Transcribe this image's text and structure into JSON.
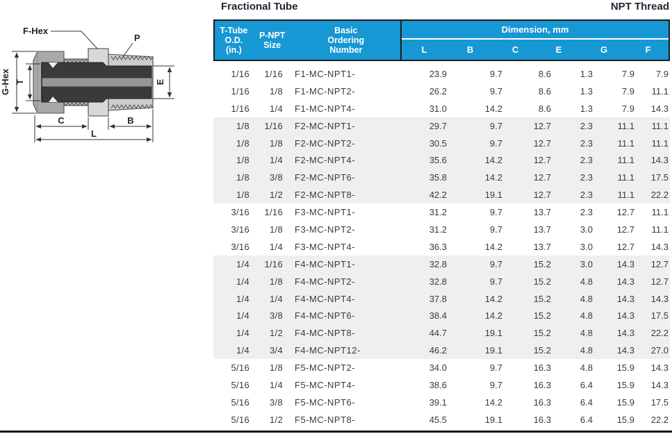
{
  "header": {
    "title_left": "Fractional Tube",
    "title_right": "NPT Thread"
  },
  "diagram": {
    "labels": {
      "f_hex": "F-Hex",
      "p": "P",
      "g_hex": "G-Hex",
      "t": "T",
      "e": "E",
      "c": "C",
      "b": "B",
      "l": "L"
    }
  },
  "table": {
    "column_headers": {
      "tube_od_lines": [
        "T-Tube",
        "O.D.",
        "(in.)"
      ],
      "npt_size_lines": [
        "P-NPT",
        "Size"
      ],
      "ordering_lines": [
        "Basic",
        "Ordering",
        "Number"
      ]
    },
    "dimension_header": "Dimension, mm",
    "dimension_columns": [
      "L",
      "B",
      "C",
      "E",
      "G",
      "F"
    ],
    "rows": [
      {
        "od": "1/16",
        "npt": "1/16",
        "order": "F1-MC-NPT1-",
        "dims": [
          "23.9",
          "9.7",
          "8.6",
          "1.3",
          "7.9",
          "7.9"
        ],
        "shaded": false
      },
      {
        "od": "1/16",
        "npt": "1/8",
        "order": "F1-MC-NPT2-",
        "dims": [
          "26.2",
          "9.7",
          "8.6",
          "1.3",
          "7.9",
          "11.1"
        ],
        "shaded": false
      },
      {
        "od": "1/16",
        "npt": "1/4",
        "order": "F1-MC-NPT4-",
        "dims": [
          "31.0",
          "14.2",
          "8.6",
          "1.3",
          "7.9",
          "14.3"
        ],
        "shaded": false
      },
      {
        "od": "1/8",
        "npt": "1/16",
        "order": "F2-MC-NPT1-",
        "dims": [
          "29.7",
          "9.7",
          "12.7",
          "2.3",
          "11.1",
          "11.1"
        ],
        "shaded": true
      },
      {
        "od": "1/8",
        "npt": "1/8",
        "order": "F2-MC-NPT2-",
        "dims": [
          "30.5",
          "9.7",
          "12.7",
          "2.3",
          "11.1",
          "11.1"
        ],
        "shaded": true
      },
      {
        "od": "1/8",
        "npt": "1/4",
        "order": "F2-MC-NPT4-",
        "dims": [
          "35.6",
          "14.2",
          "12.7",
          "2.3",
          "11.1",
          "14.3"
        ],
        "shaded": true
      },
      {
        "od": "1/8",
        "npt": "3/8",
        "order": "F2-MC-NPT6-",
        "dims": [
          "35.8",
          "14.2",
          "12.7",
          "2.3",
          "11.1",
          "17.5"
        ],
        "shaded": true
      },
      {
        "od": "1/8",
        "npt": "1/2",
        "order": "F2-MC-NPT8-",
        "dims": [
          "42.2",
          "19.1",
          "12.7",
          "2.3",
          "11.1",
          "22.2"
        ],
        "shaded": true
      },
      {
        "od": "3/16",
        "npt": "1/16",
        "order": "F3-MC-NPT1-",
        "dims": [
          "31.2",
          "9.7",
          "13.7",
          "2.3",
          "12.7",
          "11.1"
        ],
        "shaded": false
      },
      {
        "od": "3/16",
        "npt": "1/8",
        "order": "F3-MC-NPT2-",
        "dims": [
          "31.2",
          "9.7",
          "13.7",
          "3.0",
          "12.7",
          "11.1"
        ],
        "shaded": false
      },
      {
        "od": "3/16",
        "npt": "1/4",
        "order": "F3-MC-NPT4-",
        "dims": [
          "36.3",
          "14.2",
          "13.7",
          "3.0",
          "12.7",
          "14.3"
        ],
        "shaded": false
      },
      {
        "od": "1/4",
        "npt": "1/16",
        "order": "F4-MC-NPT1-",
        "dims": [
          "32.8",
          "9.7",
          "15.2",
          "3.0",
          "14.3",
          "12.7"
        ],
        "shaded": true
      },
      {
        "od": "1/4",
        "npt": "1/8",
        "order": "F4-MC-NPT2-",
        "dims": [
          "32.8",
          "9.7",
          "15.2",
          "4.8",
          "14.3",
          "12.7"
        ],
        "shaded": true
      },
      {
        "od": "1/4",
        "npt": "1/4",
        "order": "F4-MC-NPT4-",
        "dims": [
          "37.8",
          "14.2",
          "15.2",
          "4.8",
          "14.3",
          "14.3"
        ],
        "shaded": true
      },
      {
        "od": "1/4",
        "npt": "3/8",
        "order": "F4-MC-NPT6-",
        "dims": [
          "38.4",
          "14.2",
          "15.2",
          "4.8",
          "14.3",
          "17.5"
        ],
        "shaded": true
      },
      {
        "od": "1/4",
        "npt": "1/2",
        "order": "F4-MC-NPT8-",
        "dims": [
          "44.7",
          "19.1",
          "15.2",
          "4.8",
          "14.3",
          "22.2"
        ],
        "shaded": true
      },
      {
        "od": "1/4",
        "npt": "3/4",
        "order": "F4-MC-NPT12-",
        "dims": [
          "46.2",
          "19.1",
          "15.2",
          "4.8",
          "14.3",
          "27.0"
        ],
        "shaded": true
      },
      {
        "od": "5/16",
        "npt": "1/8",
        "order": "F5-MC-NPT2-",
        "dims": [
          "34.0",
          "9.7",
          "16.3",
          "4.8",
          "15.9",
          "14.3"
        ],
        "shaded": false
      },
      {
        "od": "5/16",
        "npt": "1/4",
        "order": "F5-MC-NPT4-",
        "dims": [
          "38.6",
          "9.7",
          "16.3",
          "6.4",
          "15.9",
          "14.3"
        ],
        "shaded": false
      },
      {
        "od": "5/16",
        "npt": "3/8",
        "order": "F5-MC-NPT6-",
        "dims": [
          "39.1",
          "14.2",
          "16.3",
          "6.4",
          "15.9",
          "17.5"
        ],
        "shaded": false
      },
      {
        "od": "5/16",
        "npt": "1/2",
        "order": "F5-MC-NPT8-",
        "dims": [
          "45.5",
          "19.1",
          "16.3",
          "6.4",
          "15.9",
          "22.2"
        ],
        "shaded": false
      }
    ]
  },
  "colors": {
    "header_blue": "#1797D4",
    "row_shade": "#EFEFEF",
    "rule": "#1B1B1B",
    "title_text": "#1E2531"
  }
}
